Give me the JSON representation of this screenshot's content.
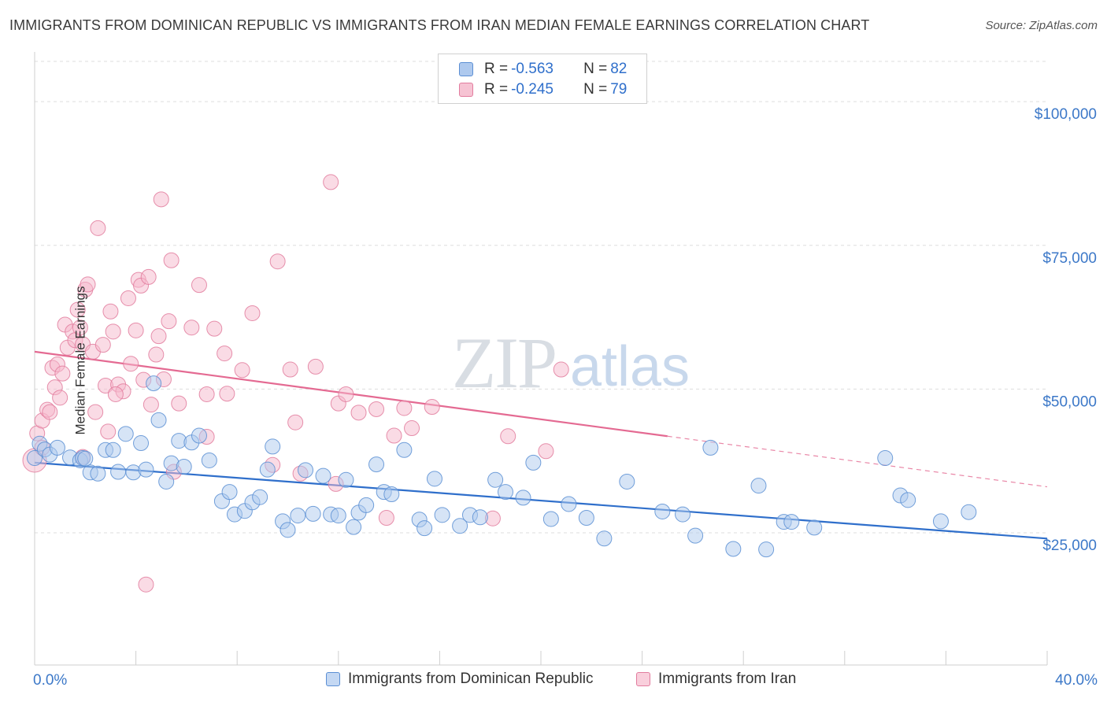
{
  "title": "IMMIGRANTS FROM DOMINICAN REPUBLIC VS IMMIGRANTS FROM IRAN MEDIAN FEMALE EARNINGS CORRELATION CHART",
  "source": "Source: ZipAtlas.com",
  "watermark": {
    "zip": "ZIP",
    "atlas": "atlas"
  },
  "legend": {
    "rows": [
      {
        "r_label": "R =",
        "r_value": "-0.563",
        "n_label": "N =",
        "n_value": "82"
      },
      {
        "r_label": "R =",
        "r_value": "-0.245",
        "n_label": "N =",
        "n_value": "79"
      }
    ]
  },
  "colors": {
    "blue_fill": "#aec9ee",
    "blue_stroke": "#5b8fd4",
    "blue_line": "#2f6fcb",
    "pink_fill": "#f6b8cb",
    "pink_stroke": "#e27c9e",
    "pink_line": "#e46a92",
    "axis_text": "#3c78c8",
    "grid": "#dddddd"
  },
  "chart_data": {
    "type": "scatter",
    "title": "IMMIGRANTS FROM DOMINICAN REPUBLIC VS IMMIGRANTS FROM IRAN MEDIAN FEMALE EARNINGS CORRELATION CHART",
    "xlabel": "",
    "ylabel": "Median Female Earnings",
    "xlim": [
      0,
      40
    ],
    "ylim": [
      2000,
      107000
    ],
    "x_tick_labels": [
      "0.0%",
      "40.0%"
    ],
    "y_ticks": [
      25000,
      50000,
      75000,
      100000
    ],
    "y_tick_labels": [
      "$25,000",
      "$50,000",
      "$75,000",
      "$100,000"
    ],
    "grid": true,
    "legend_position": "top-center",
    "series": [
      {
        "name": "Immigrants from Dominican Republic",
        "color": "#5b8fd4",
        "r": -0.563,
        "n": 82,
        "trend": {
          "x": [
            0,
            40
          ],
          "y": [
            37200,
            24000
          ]
        },
        "points": [
          [
            0.0,
            38000
          ],
          [
            0.2,
            40500
          ],
          [
            0.4,
            39500
          ],
          [
            0.6,
            38600
          ],
          [
            0.9,
            39800
          ],
          [
            1.4,
            38100
          ],
          [
            1.8,
            37600
          ],
          [
            1.9,
            38000
          ],
          [
            2.2,
            35500
          ],
          [
            2.5,
            35300
          ],
          [
            2.8,
            39400
          ],
          [
            3.1,
            39400
          ],
          [
            3.3,
            35600
          ],
          [
            3.6,
            42200
          ],
          [
            3.9,
            35500
          ],
          [
            4.2,
            40600
          ],
          [
            4.4,
            36000
          ],
          [
            4.7,
            51000
          ],
          [
            4.9,
            44600
          ],
          [
            5.2,
            33900
          ],
          [
            5.4,
            37100
          ],
          [
            5.7,
            41000
          ],
          [
            5.9,
            36500
          ],
          [
            6.2,
            40700
          ],
          [
            6.5,
            41900
          ],
          [
            6.9,
            37600
          ],
          [
            7.4,
            30500
          ],
          [
            7.7,
            32100
          ],
          [
            7.9,
            28200
          ],
          [
            8.3,
            28800
          ],
          [
            8.6,
            30300
          ],
          [
            8.9,
            31200
          ],
          [
            9.2,
            36000
          ],
          [
            9.4,
            40000
          ],
          [
            9.8,
            27000
          ],
          [
            10.0,
            25500
          ],
          [
            10.4,
            28000
          ],
          [
            10.7,
            35900
          ],
          [
            11.0,
            28300
          ],
          [
            11.4,
            34900
          ],
          [
            11.7,
            28200
          ],
          [
            12.0,
            28000
          ],
          [
            12.3,
            34200
          ],
          [
            12.6,
            26000
          ],
          [
            12.8,
            28500
          ],
          [
            13.1,
            29800
          ],
          [
            13.5,
            36900
          ],
          [
            13.8,
            32100
          ],
          [
            14.1,
            31700
          ],
          [
            14.6,
            39400
          ],
          [
            15.2,
            27300
          ],
          [
            15.4,
            25800
          ],
          [
            15.8,
            34400
          ],
          [
            16.1,
            28100
          ],
          [
            16.8,
            26200
          ],
          [
            17.2,
            28100
          ],
          [
            17.6,
            27700
          ],
          [
            18.2,
            34200
          ],
          [
            18.6,
            32100
          ],
          [
            19.3,
            31100
          ],
          [
            19.7,
            37200
          ],
          [
            20.4,
            27400
          ],
          [
            21.1,
            30000
          ],
          [
            21.8,
            27600
          ],
          [
            22.5,
            24000
          ],
          [
            23.4,
            33900
          ],
          [
            24.8,
            28700
          ],
          [
            25.6,
            28200
          ],
          [
            26.1,
            24500
          ],
          [
            26.7,
            39800
          ],
          [
            27.6,
            22200
          ],
          [
            28.6,
            33200
          ],
          [
            28.9,
            22100
          ],
          [
            29.6,
            26900
          ],
          [
            29.9,
            26900
          ],
          [
            30.8,
            25900
          ],
          [
            33.6,
            38000
          ],
          [
            34.2,
            31500
          ],
          [
            34.5,
            30700
          ],
          [
            35.8,
            27000
          ],
          [
            36.9,
            28600
          ],
          [
            2.0,
            37900
          ]
        ]
      },
      {
        "name": "Immigrants from Iran",
        "color": "#e27c9e",
        "r": -0.245,
        "n": 79,
        "trend": {
          "x": [
            0,
            25
          ],
          "y": [
            56500,
            41800
          ]
        },
        "trend_dashed": {
          "x": [
            25,
            40
          ],
          "y": [
            41800,
            33000
          ]
        },
        "points": [
          [
            0.0,
            37600
          ],
          [
            0.1,
            42300
          ],
          [
            0.3,
            44500
          ],
          [
            0.5,
            46400
          ],
          [
            0.7,
            53700
          ],
          [
            0.8,
            50300
          ],
          [
            0.9,
            54300
          ],
          [
            1.0,
            48500
          ],
          [
            1.1,
            52700
          ],
          [
            1.2,
            61200
          ],
          [
            1.3,
            57200
          ],
          [
            1.5,
            60000
          ],
          [
            1.6,
            58500
          ],
          [
            1.7,
            63800
          ],
          [
            1.8,
            60700
          ],
          [
            1.9,
            57800
          ],
          [
            2.0,
            67300
          ],
          [
            2.1,
            68200
          ],
          [
            2.3,
            56500
          ],
          [
            2.4,
            46000
          ],
          [
            2.5,
            78000
          ],
          [
            2.7,
            57700
          ],
          [
            2.8,
            50600
          ],
          [
            2.9,
            42600
          ],
          [
            3.0,
            63500
          ],
          [
            3.1,
            60000
          ],
          [
            3.3,
            50800
          ],
          [
            3.5,
            49600
          ],
          [
            3.7,
            65800
          ],
          [
            3.8,
            54400
          ],
          [
            4.0,
            60200
          ],
          [
            4.1,
            69000
          ],
          [
            4.2,
            68000
          ],
          [
            4.3,
            51600
          ],
          [
            4.4,
            16000
          ],
          [
            4.5,
            69500
          ],
          [
            4.6,
            47300
          ],
          [
            4.8,
            56000
          ],
          [
            4.9,
            59200
          ],
          [
            5.0,
            83000
          ],
          [
            5.1,
            51700
          ],
          [
            5.3,
            61800
          ],
          [
            5.4,
            72400
          ],
          [
            5.5,
            35600
          ],
          [
            5.7,
            47500
          ],
          [
            6.2,
            60700
          ],
          [
            6.5,
            68100
          ],
          [
            6.8,
            41700
          ],
          [
            7.1,
            60500
          ],
          [
            7.5,
            56200
          ],
          [
            7.6,
            49200
          ],
          [
            8.2,
            53300
          ],
          [
            8.6,
            63200
          ],
          [
            9.4,
            36800
          ],
          [
            9.6,
            72200
          ],
          [
            10.1,
            53400
          ],
          [
            10.3,
            44200
          ],
          [
            10.5,
            35300
          ],
          [
            11.1,
            53900
          ],
          [
            11.7,
            86000
          ],
          [
            11.9,
            33500
          ],
          [
            12.0,
            47500
          ],
          [
            12.3,
            49100
          ],
          [
            12.8,
            45900
          ],
          [
            13.5,
            46500
          ],
          [
            13.9,
            27600
          ],
          [
            14.2,
            41900
          ],
          [
            14.6,
            46700
          ],
          [
            14.9,
            43200
          ],
          [
            15.7,
            46900
          ],
          [
            18.1,
            27500
          ],
          [
            18.7,
            41800
          ],
          [
            20.2,
            39200
          ],
          [
            20.8,
            53400
          ],
          [
            1.9,
            38200
          ],
          [
            3.2,
            49100
          ],
          [
            6.8,
            49100
          ],
          [
            0.3,
            39800
          ],
          [
            0.6,
            46000
          ]
        ]
      }
    ]
  }
}
